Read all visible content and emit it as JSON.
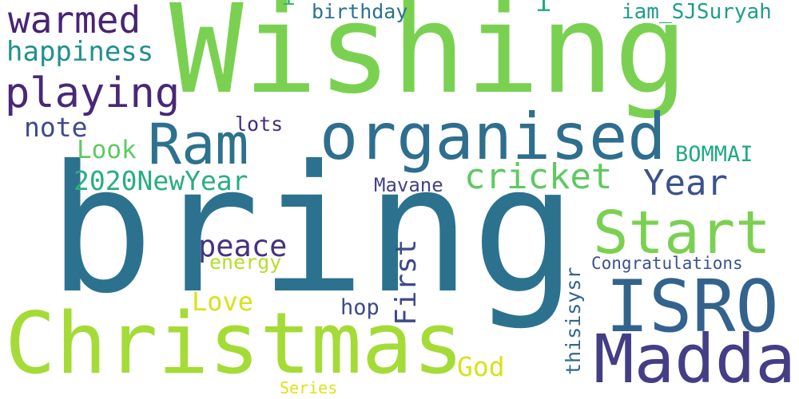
{
  "words": {
    "wishing": {
      "text": "Wishing",
      "color": "#7ad151"
    },
    "bring": {
      "text": "bring",
      "color": "#2c728e"
    },
    "christmas": {
      "text": "Christmas",
      "color": "#a5db36"
    },
    "madda": {
      "text": "Madda",
      "color": "#433e85"
    },
    "isro": {
      "text": "ISRO",
      "color": "#33638d"
    },
    "start": {
      "text": "Start",
      "color": "#7ad151"
    },
    "organised": {
      "text": "organised",
      "color": "#2e6e8e"
    },
    "ram": {
      "text": "Ram",
      "color": "#2c728e"
    },
    "cricket": {
      "text": "cricket",
      "color": "#5ec962"
    },
    "year": {
      "text": "Year",
      "color": "#3b528b"
    },
    "playing": {
      "text": "playing",
      "color": "#482878"
    },
    "warmed": {
      "text": "warmed",
      "color": "#482475"
    },
    "happiness": {
      "text": "happiness",
      "color": "#21918c"
    },
    "note": {
      "text": "note",
      "color": "#3e4a89"
    },
    "look": {
      "text": "Look",
      "color": "#5ec962"
    },
    "newyear2020": {
      "text": "2020NewYear",
      "color": "#28ae80"
    },
    "lots": {
      "text": "lots",
      "color": "#472d7b"
    },
    "bommai": {
      "text": "BOMMAI",
      "color": "#22a884"
    },
    "mavane": {
      "text": "Mavane",
      "color": "#414487"
    },
    "peace": {
      "text": "peace",
      "color": "#46327e"
    },
    "energy": {
      "text": "energy",
      "color": "#b5de2b"
    },
    "love": {
      "text": "Love",
      "color": "#d8e219"
    },
    "hop": {
      "text": "hop",
      "color": "#3e4a89"
    },
    "god": {
      "text": "God",
      "color": "#d8e219"
    },
    "series": {
      "text": "Series",
      "color": "#dde318"
    },
    "birthday": {
      "text": "birthday",
      "color": "#2c728e"
    },
    "iam_sjsuryah": {
      "text": "iam_SJSuryah",
      "color": "#1f9e89"
    },
    "congratulations": {
      "text": "Congratulations",
      "color": "#3b528b"
    },
    "first": {
      "text": "First",
      "color": "#3e4a89"
    },
    "thisisysr": {
      "text": "thisisysr",
      "color": "#31688e"
    },
    "dot1": {
      "text": "i",
      "color": "#35b779"
    },
    "dot2": {
      "text": "i",
      "color": "#22a884"
    }
  }
}
